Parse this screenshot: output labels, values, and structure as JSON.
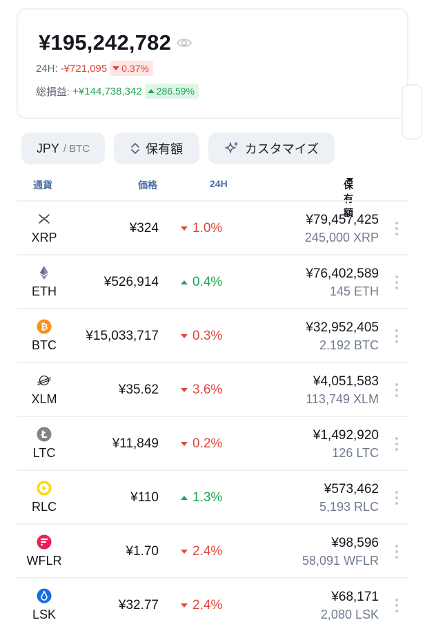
{
  "summary": {
    "total": "¥195,242,782",
    "change_label": "24H:",
    "change_value": "-¥721,095",
    "change_pct": "0.37%",
    "pnl_label": "総損益:",
    "pnl_value": "+¥144,738,342",
    "pnl_pct": "286.59%"
  },
  "toolbar": {
    "currency_main": "JPY",
    "currency_sub": "/ BTC",
    "sort_label": "保有額",
    "customize_label": "カスタマイズ"
  },
  "columns": {
    "currency": "通貨",
    "price": "価格",
    "change": "24H",
    "holding": "保有額"
  },
  "colors": {
    "negative": "#e0453c",
    "positive": "#1ea552"
  },
  "assets": [
    {
      "symbol": "XRP",
      "icon": "xrp-icon",
      "price": "¥324",
      "change": "1.0%",
      "direction": "down",
      "value": "¥79,457,425",
      "quantity": "245,000 XRP"
    },
    {
      "symbol": "ETH",
      "icon": "eth-icon",
      "price": "¥526,914",
      "change": "0.4%",
      "direction": "up",
      "value": "¥76,402,589",
      "quantity": "145 ETH"
    },
    {
      "symbol": "BTC",
      "icon": "btc-icon",
      "price": "¥15,033,717",
      "change": "0.3%",
      "direction": "down",
      "value": "¥32,952,405",
      "quantity": "2.192 BTC"
    },
    {
      "symbol": "XLM",
      "icon": "xlm-icon",
      "price": "¥35.62",
      "change": "3.6%",
      "direction": "down",
      "value": "¥4,051,583",
      "quantity": "113,749 XLM"
    },
    {
      "symbol": "LTC",
      "icon": "ltc-icon",
      "price": "¥11,849",
      "change": "0.2%",
      "direction": "down",
      "value": "¥1,492,920",
      "quantity": "126 LTC"
    },
    {
      "symbol": "RLC",
      "icon": "rlc-icon",
      "price": "¥110",
      "change": "1.3%",
      "direction": "up",
      "value": "¥573,462",
      "quantity": "5,193 RLC"
    },
    {
      "symbol": "WFLR",
      "icon": "wflr-icon",
      "price": "¥1.70",
      "change": "2.4%",
      "direction": "down",
      "value": "¥98,596",
      "quantity": "58,091 WFLR"
    },
    {
      "symbol": "LSK",
      "icon": "lsk-icon",
      "price": "¥32.77",
      "change": "2.4%",
      "direction": "down",
      "value": "¥68,171",
      "quantity": "2,080 LSK"
    }
  ]
}
